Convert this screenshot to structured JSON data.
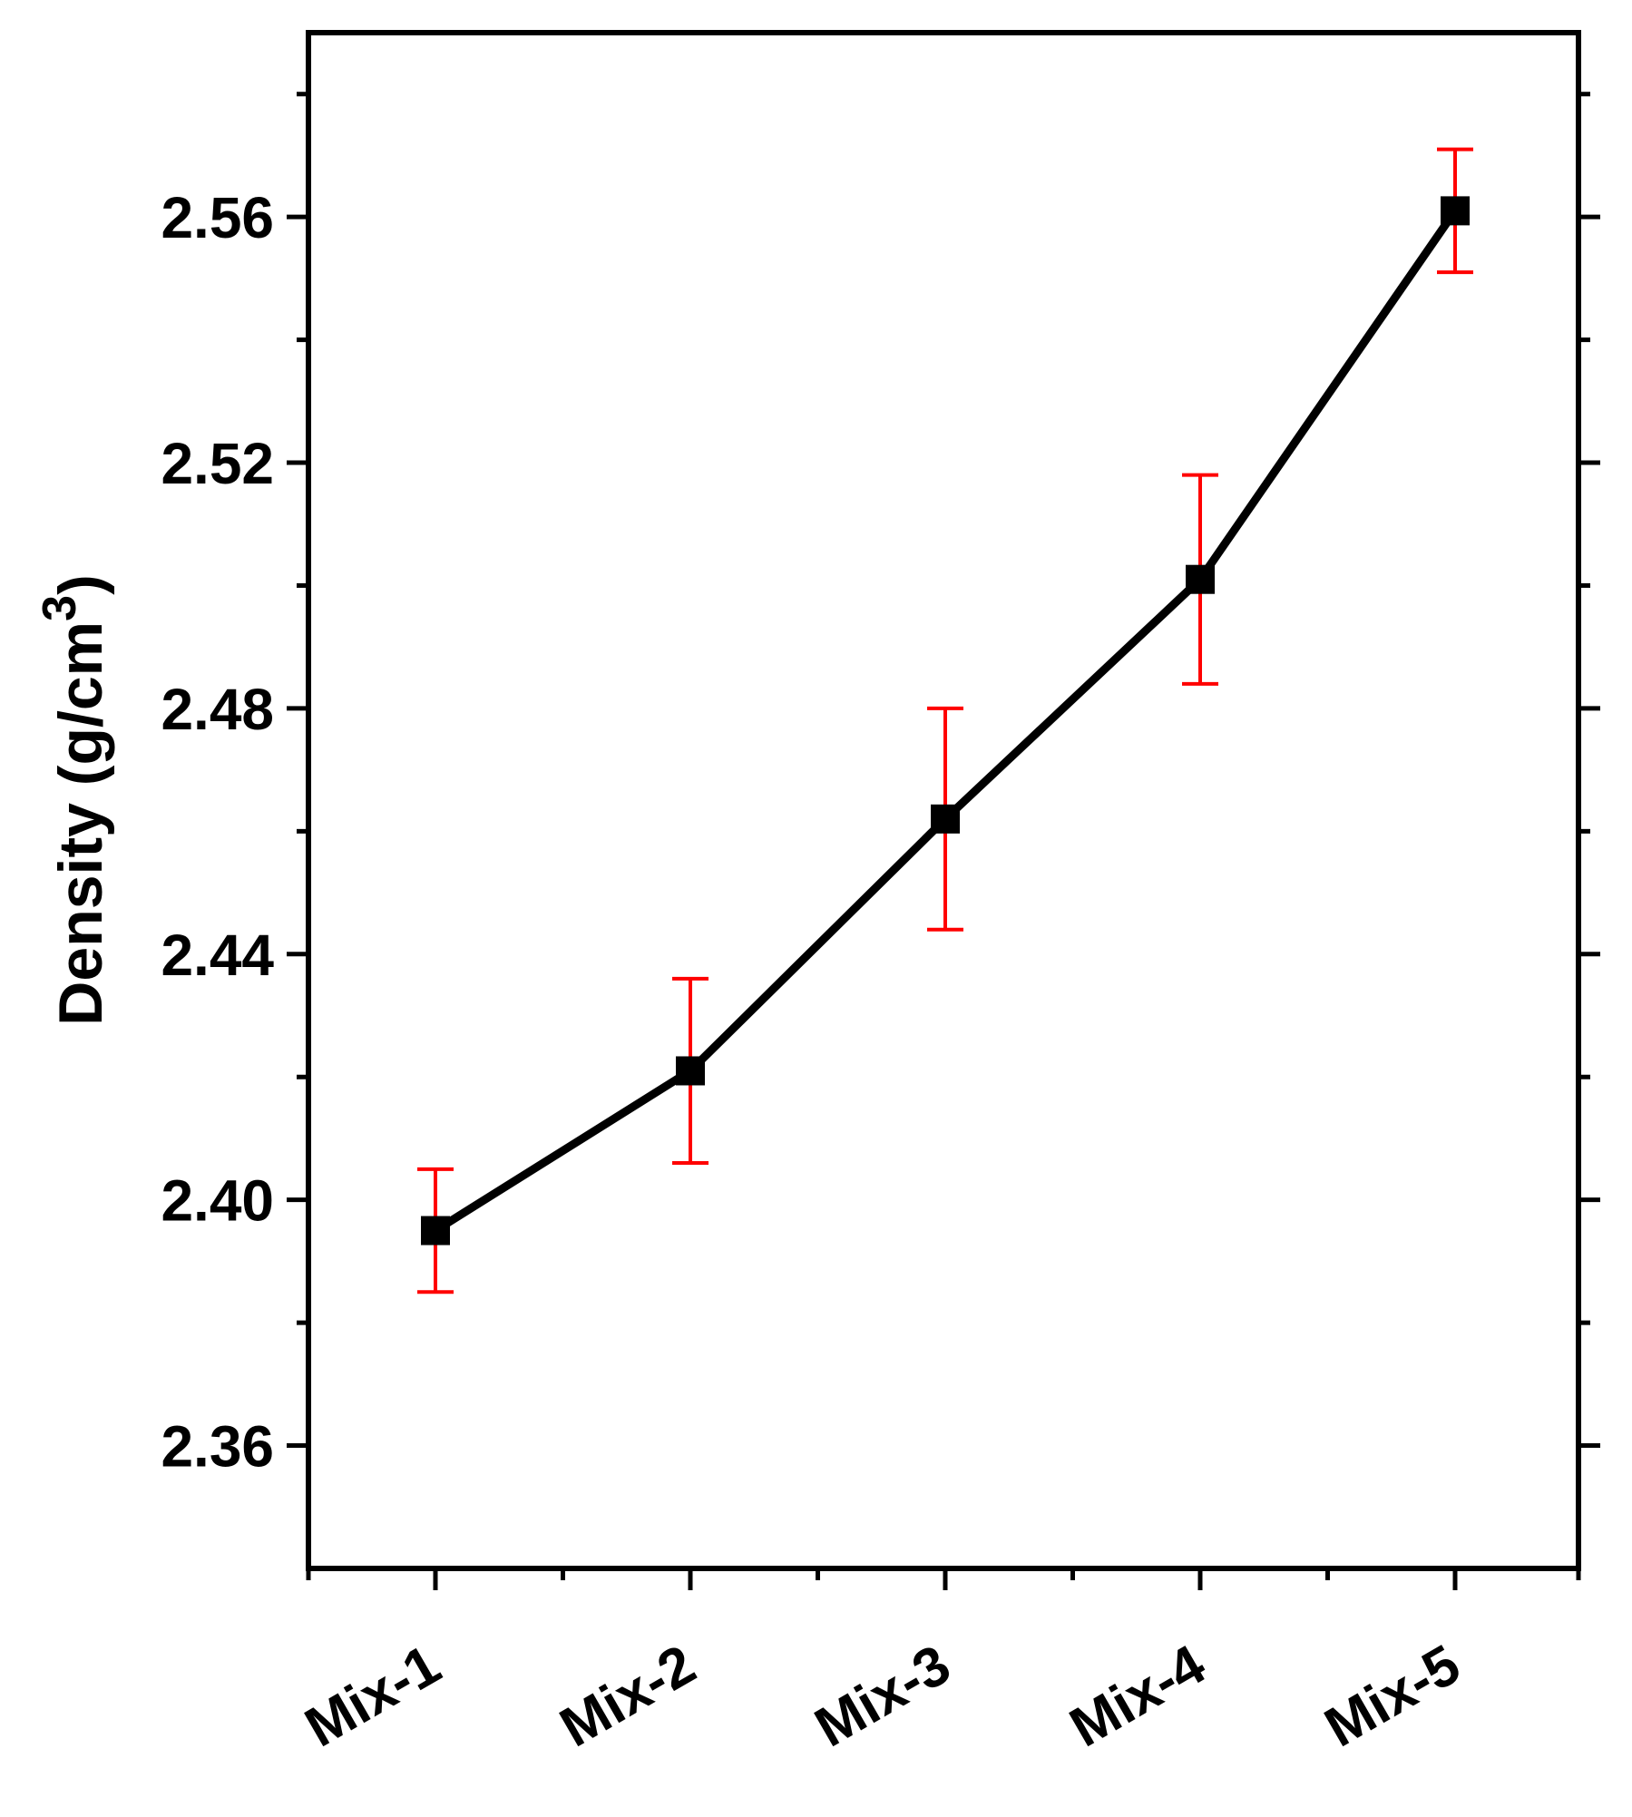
{
  "chart_data": {
    "type": "line",
    "title": "",
    "xlabel": "",
    "ylabel": "Density (g/cm",
    "ylabel_superscript": "3",
    "ylabel_suffix": ")",
    "categories": [
      "Mix-1",
      "Mix-2",
      "Mix-3",
      "Mix-4",
      "Mix-5"
    ],
    "series": [
      {
        "values": [
          2.395,
          2.421,
          2.462,
          2.501,
          2.561
        ],
        "error": [
          0.01,
          0.015,
          0.018,
          0.017,
          0.01
        ],
        "line_color": "#000000",
        "marker": "square",
        "error_color": "#ff0000"
      }
    ],
    "ylim": [
      2.34,
      2.59
    ],
    "yticks": [
      2.36,
      2.4,
      2.44,
      2.48,
      2.52,
      2.56
    ],
    "ytick_labels": [
      "2.36",
      "2.40",
      "2.44",
      "2.48",
      "2.52",
      "2.56"
    ],
    "grid": false,
    "legend": "none"
  }
}
